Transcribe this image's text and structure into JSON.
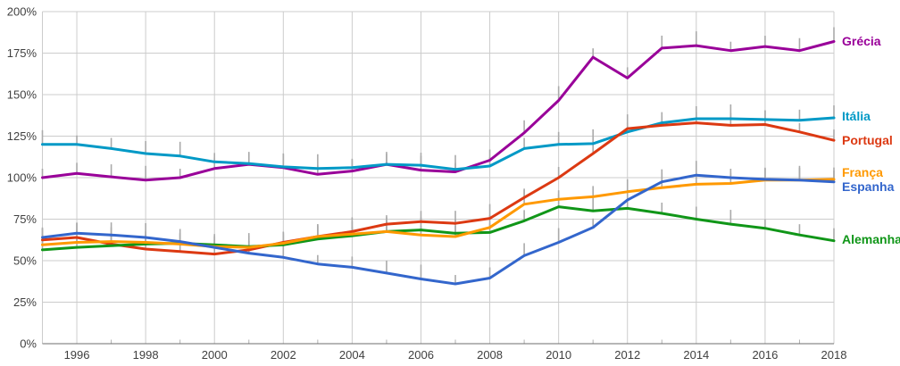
{
  "chart_data": {
    "type": "line",
    "unit": "percent-of-GDP",
    "grid": true,
    "legend_position": "right-end-labels",
    "point_marker": "gray-vertical-tick",
    "colors": {
      "gridline": "#cccccc",
      "axis_line": "#6e6e6e",
      "minor_tick": "#b0b0b0",
      "whisker": "#aaaaaa",
      "tick_label": "#404040"
    },
    "ylim": [
      0,
      200
    ],
    "y_axis": {
      "tick_values": [
        0,
        25,
        50,
        75,
        100,
        125,
        150,
        175,
        200
      ],
      "tick_labels": [
        "0%",
        "25%",
        "50%",
        "75%",
        "100%",
        "125%",
        "150%",
        "175%",
        "200%"
      ]
    },
    "x_axis": {
      "range": [
        1995,
        2018
      ],
      "labeled_ticks": [
        1996,
        1998,
        2000,
        2002,
        2004,
        2006,
        2008,
        2010,
        2012,
        2014,
        2016,
        2018
      ],
      "tick_labels": [
        "1996",
        "1998",
        "2000",
        "2002",
        "2004",
        "2006",
        "2008",
        "2010",
        "2012",
        "2014",
        "2016",
        "2018"
      ],
      "minor_ticks": [
        1997,
        1999,
        2001,
        2003,
        2005,
        2007,
        2009,
        2011,
        2013,
        2015,
        2017
      ]
    },
    "x": [
      1995,
      1996,
      1997,
      1998,
      1999,
      2000,
      2001,
      2002,
      2003,
      2004,
      2005,
      2006,
      2007,
      2008,
      2009,
      2010,
      2011,
      2012,
      2013,
      2014,
      2015,
      2016,
      2017,
      2018
    ],
    "series": [
      {
        "name": "Grécia",
        "color": "#990099",
        "values": [
          100,
          102.5,
          100.5,
          98.5,
          100,
          105.5,
          108,
          106,
          102,
          104,
          108,
          104.5,
          103.5,
          110.5,
          127,
          146.5,
          172.5,
          160,
          178,
          179.5,
          176.5,
          179,
          176.5,
          182
        ]
      },
      {
        "name": "Itália",
        "color": "#0099C6",
        "values": [
          120,
          120,
          117.5,
          114.5,
          113,
          109.5,
          108.5,
          106.5,
          105.5,
          106,
          108,
          107.5,
          105,
          107,
          117.5,
          120,
          120.5,
          127.5,
          133,
          135.5,
          135.5,
          135,
          134.5,
          136
        ]
      },
      {
        "name": "Portugal",
        "color": "#DC3912",
        "values": [
          62.5,
          64,
          60,
          57,
          55.5,
          54,
          56.5,
          61,
          64.5,
          67.5,
          72,
          73.5,
          72.5,
          75.5,
          88,
          100,
          114.5,
          129.5,
          131.5,
          133,
          131.5,
          132,
          127.5,
          122.5
        ]
      },
      {
        "name": "França",
        "color": "#FF9900",
        "values": [
          59.5,
          61,
          61.5,
          61,
          60,
          58.5,
          58,
          60.5,
          64.5,
          66,
          67.5,
          65.5,
          64.5,
          70,
          84,
          87,
          88.5,
          91.5,
          94,
          96,
          96.5,
          98.5,
          98.5,
          99
        ]
      },
      {
        "name": "Espanha",
        "color": "#3366CC",
        "values": [
          64,
          66.5,
          65.5,
          64,
          61.5,
          58,
          54.5,
          52,
          48,
          46,
          42.5,
          39,
          36,
          39.5,
          53,
          61,
          70,
          86.5,
          97.5,
          101.5,
          100,
          99,
          98.5,
          97.5
        ]
      },
      {
        "name": "Alemanha",
        "color": "#109618",
        "values": [
          56.5,
          58,
          59,
          60,
          60.5,
          59.5,
          58.5,
          59.5,
          63,
          65,
          67.5,
          68.5,
          66.5,
          67,
          74,
          82.5,
          80,
          81.5,
          78.5,
          75,
          72,
          69.5,
          65.5,
          62
        ]
      }
    ]
  }
}
